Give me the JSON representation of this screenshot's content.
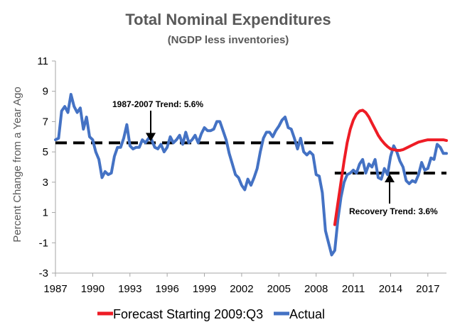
{
  "chart_data": {
    "type": "line",
    "title": "Total Nominal Expenditures",
    "subtitle": "(NGDP less inventories)",
    "xlabel": "",
    "ylabel": "Percent Change from a Year Ago",
    "xlim": [
      1987,
      2018.5
    ],
    "ylim": [
      -3,
      11
    ],
    "x_ticks": [
      1987,
      1990,
      1993,
      1996,
      1999,
      2002,
      2005,
      2008,
      2011,
      2014,
      2017
    ],
    "x_tick_labels": [
      "1987",
      "1990",
      "1993",
      "1996",
      "1999",
      "2002",
      "2005",
      "2008",
      "2011",
      "2014",
      "2017"
    ],
    "y_ticks": [
      -3,
      -1,
      1,
      3,
      5,
      7,
      9,
      11
    ],
    "y_tick_labels": [
      "-3",
      "-1",
      "1",
      "3",
      "5",
      "7",
      "9",
      "11"
    ],
    "grid": false,
    "legend_position": "bottom",
    "series": [
      {
        "name": "Forecast Starting 2009:Q3",
        "color": "#ee1c25",
        "points": [
          [
            2009.5,
            0.2
          ],
          [
            2009.75,
            1.6
          ],
          [
            2010.0,
            3.0
          ],
          [
            2010.25,
            4.4
          ],
          [
            2010.5,
            5.6
          ],
          [
            2010.75,
            6.5
          ],
          [
            2011.0,
            7.1
          ],
          [
            2011.25,
            7.5
          ],
          [
            2011.5,
            7.7
          ],
          [
            2011.75,
            7.75
          ],
          [
            2012.0,
            7.6
          ],
          [
            2012.25,
            7.3
          ],
          [
            2012.5,
            6.9
          ],
          [
            2012.75,
            6.5
          ],
          [
            2013.0,
            6.1
          ],
          [
            2013.25,
            5.8
          ],
          [
            2013.5,
            5.55
          ],
          [
            2013.75,
            5.35
          ],
          [
            2014.0,
            5.2
          ],
          [
            2014.25,
            5.15
          ],
          [
            2014.5,
            5.1
          ],
          [
            2014.75,
            5.1
          ],
          [
            2015.0,
            5.15
          ],
          [
            2015.25,
            5.25
          ],
          [
            2015.5,
            5.35
          ],
          [
            2015.75,
            5.45
          ],
          [
            2016.0,
            5.55
          ],
          [
            2016.25,
            5.65
          ],
          [
            2016.5,
            5.7
          ],
          [
            2016.75,
            5.75
          ],
          [
            2017.0,
            5.8
          ],
          [
            2017.25,
            5.8
          ],
          [
            2017.5,
            5.8
          ],
          [
            2017.75,
            5.8
          ],
          [
            2018.0,
            5.8
          ],
          [
            2018.25,
            5.8
          ],
          [
            2018.5,
            5.75
          ]
        ]
      },
      {
        "name": "Actual",
        "color": "#4472c4",
        "points": [
          [
            1987.0,
            5.8
          ],
          [
            1987.25,
            5.9
          ],
          [
            1987.5,
            7.7
          ],
          [
            1987.75,
            8.0
          ],
          [
            1988.0,
            7.6
          ],
          [
            1988.25,
            8.8
          ],
          [
            1988.5,
            8.0
          ],
          [
            1988.75,
            7.6
          ],
          [
            1989.0,
            7.9
          ],
          [
            1989.25,
            6.5
          ],
          [
            1989.5,
            7.3
          ],
          [
            1989.75,
            6.0
          ],
          [
            1990.0,
            5.8
          ],
          [
            1990.25,
            5.0
          ],
          [
            1990.5,
            4.5
          ],
          [
            1990.75,
            3.3
          ],
          [
            1991.0,
            3.7
          ],
          [
            1991.25,
            3.5
          ],
          [
            1991.5,
            3.6
          ],
          [
            1991.75,
            4.7
          ],
          [
            1992.0,
            5.3
          ],
          [
            1992.25,
            5.3
          ],
          [
            1992.5,
            5.9
          ],
          [
            1992.75,
            6.8
          ],
          [
            1993.0,
            5.4
          ],
          [
            1993.25,
            5.2
          ],
          [
            1993.5,
            5.3
          ],
          [
            1993.75,
            5.3
          ],
          [
            1994.0,
            5.8
          ],
          [
            1994.25,
            5.6
          ],
          [
            1994.5,
            5.9
          ],
          [
            1994.75,
            5.8
          ],
          [
            1995.0,
            5.3
          ],
          [
            1995.25,
            5.2
          ],
          [
            1995.5,
            5.5
          ],
          [
            1995.75,
            5.0
          ],
          [
            1996.0,
            5.3
          ],
          [
            1996.25,
            6.0
          ],
          [
            1996.5,
            5.6
          ],
          [
            1996.75,
            5.8
          ],
          [
            1997.0,
            6.1
          ],
          [
            1997.25,
            5.5
          ],
          [
            1997.5,
            6.3
          ],
          [
            1997.75,
            5.6
          ],
          [
            1998.0,
            5.8
          ],
          [
            1998.25,
            6.1
          ],
          [
            1998.5,
            5.6
          ],
          [
            1998.75,
            6.2
          ],
          [
            1999.0,
            6.6
          ],
          [
            1999.25,
            6.4
          ],
          [
            1999.5,
            6.4
          ],
          [
            1999.75,
            6.5
          ],
          [
            2000.0,
            7.0
          ],
          [
            2000.25,
            7.0
          ],
          [
            2000.5,
            6.4
          ],
          [
            2000.75,
            5.8
          ],
          [
            2001.0,
            4.9
          ],
          [
            2001.25,
            4.2
          ],
          [
            2001.5,
            3.5
          ],
          [
            2001.75,
            3.3
          ],
          [
            2002.0,
            2.8
          ],
          [
            2002.25,
            2.5
          ],
          [
            2002.5,
            3.2
          ],
          [
            2002.75,
            2.8
          ],
          [
            2003.0,
            3.3
          ],
          [
            2003.25,
            3.9
          ],
          [
            2003.5,
            5.0
          ],
          [
            2003.75,
            5.9
          ],
          [
            2004.0,
            6.3
          ],
          [
            2004.25,
            6.3
          ],
          [
            2004.5,
            6.0
          ],
          [
            2004.75,
            6.4
          ],
          [
            2005.0,
            6.7
          ],
          [
            2005.25,
            7.1
          ],
          [
            2005.5,
            7.3
          ],
          [
            2005.75,
            6.6
          ],
          [
            2006.0,
            6.5
          ],
          [
            2006.25,
            5.9
          ],
          [
            2006.5,
            5.2
          ],
          [
            2006.75,
            5.9
          ],
          [
            2007.0,
            5.0
          ],
          [
            2007.25,
            4.8
          ],
          [
            2007.5,
            5.0
          ],
          [
            2007.75,
            4.8
          ],
          [
            2008.0,
            3.5
          ],
          [
            2008.25,
            3.4
          ],
          [
            2008.5,
            2.3
          ],
          [
            2008.75,
            -0.2
          ],
          [
            2009.0,
            -1.0
          ],
          [
            2009.25,
            -1.8
          ],
          [
            2009.5,
            -1.5
          ],
          [
            2009.75,
            0.5
          ],
          [
            2010.0,
            2.0
          ],
          [
            2010.25,
            3.0
          ],
          [
            2010.5,
            3.5
          ],
          [
            2010.75,
            3.6
          ],
          [
            2011.0,
            3.8
          ],
          [
            2011.25,
            3.6
          ],
          [
            2011.5,
            4.2
          ],
          [
            2011.75,
            4.5
          ],
          [
            2012.0,
            3.6
          ],
          [
            2012.25,
            4.2
          ],
          [
            2012.5,
            4.0
          ],
          [
            2012.75,
            4.5
          ],
          [
            2013.0,
            3.3
          ],
          [
            2013.25,
            3.2
          ],
          [
            2013.5,
            3.9
          ],
          [
            2013.75,
            3.5
          ],
          [
            2014.0,
            4.7
          ],
          [
            2014.25,
            5.4
          ],
          [
            2014.5,
            5.0
          ],
          [
            2014.75,
            4.4
          ],
          [
            2015.0,
            4.0
          ],
          [
            2015.25,
            3.1
          ],
          [
            2015.5,
            2.9
          ],
          [
            2015.75,
            3.1
          ],
          [
            2016.0,
            3.0
          ],
          [
            2016.25,
            3.5
          ],
          [
            2016.5,
            4.3
          ],
          [
            2016.75,
            3.8
          ],
          [
            2017.0,
            3.9
          ],
          [
            2017.25,
            4.6
          ],
          [
            2017.5,
            4.5
          ],
          [
            2017.75,
            5.5
          ],
          [
            2018.0,
            5.3
          ],
          [
            2018.25,
            4.9
          ],
          [
            2018.5,
            4.9
          ]
        ]
      }
    ],
    "trend_lines": [
      {
        "label": "1987-2007 Trend: 5.6%",
        "value": 5.6,
        "x_range": [
          1987,
          2009.5
        ]
      },
      {
        "label": "Recovery Trend: 3.6%",
        "value": 3.6,
        "x_range": [
          2009.5,
          2018.5
        ]
      }
    ]
  }
}
